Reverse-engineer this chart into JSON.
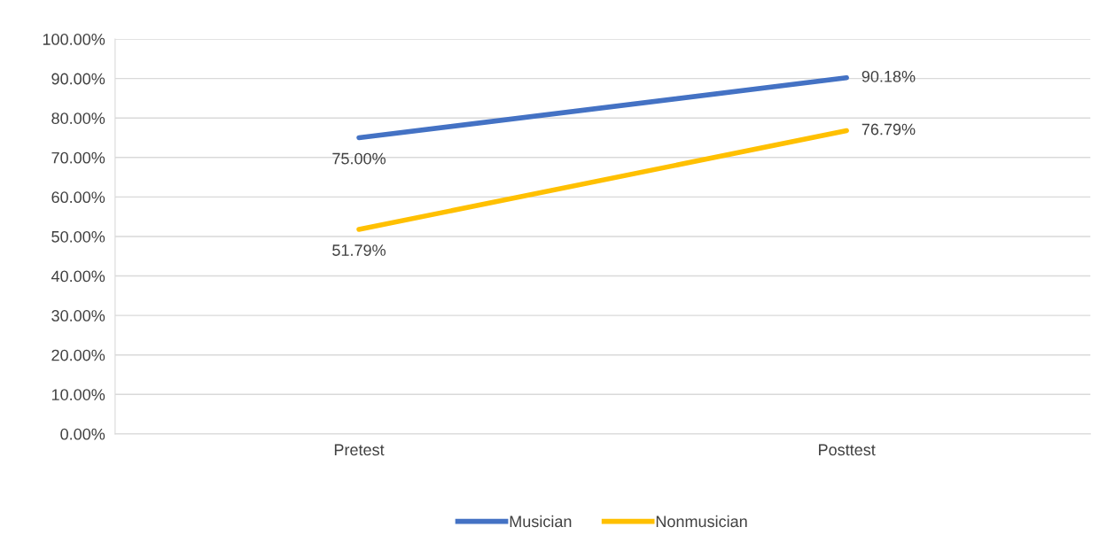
{
  "chart_data": {
    "type": "line",
    "categories": [
      "Pretest",
      "Posttest"
    ],
    "series": [
      {
        "name": "Musician",
        "color": "#4472c4",
        "values": [
          75.0,
          90.18
        ],
        "value_labels": [
          "75.00%",
          "90.18%"
        ]
      },
      {
        "name": "Nonmusician",
        "color": "#ffc000",
        "values": [
          51.79,
          76.79
        ],
        "value_labels": [
          "51.79%",
          "76.79%"
        ]
      }
    ],
    "ylim": [
      0,
      100
    ],
    "yticks": [
      {
        "value": 0,
        "label": "0.00%"
      },
      {
        "value": 10,
        "label": "10.00%"
      },
      {
        "value": 20,
        "label": "20.00%"
      },
      {
        "value": 30,
        "label": "30.00%"
      },
      {
        "value": 40,
        "label": "40.00%"
      },
      {
        "value": 50,
        "label": "50.00%"
      },
      {
        "value": 60,
        "label": "60.00%"
      },
      {
        "value": 70,
        "label": "70.00%"
      },
      {
        "value": 80,
        "label": "80.00%"
      },
      {
        "value": 90,
        "label": "90.00%"
      },
      {
        "value": 100,
        "label": "100.00%"
      }
    ],
    "grid": "y",
    "legend": "bottom",
    "marker": "none",
    "line_style": "solid"
  }
}
